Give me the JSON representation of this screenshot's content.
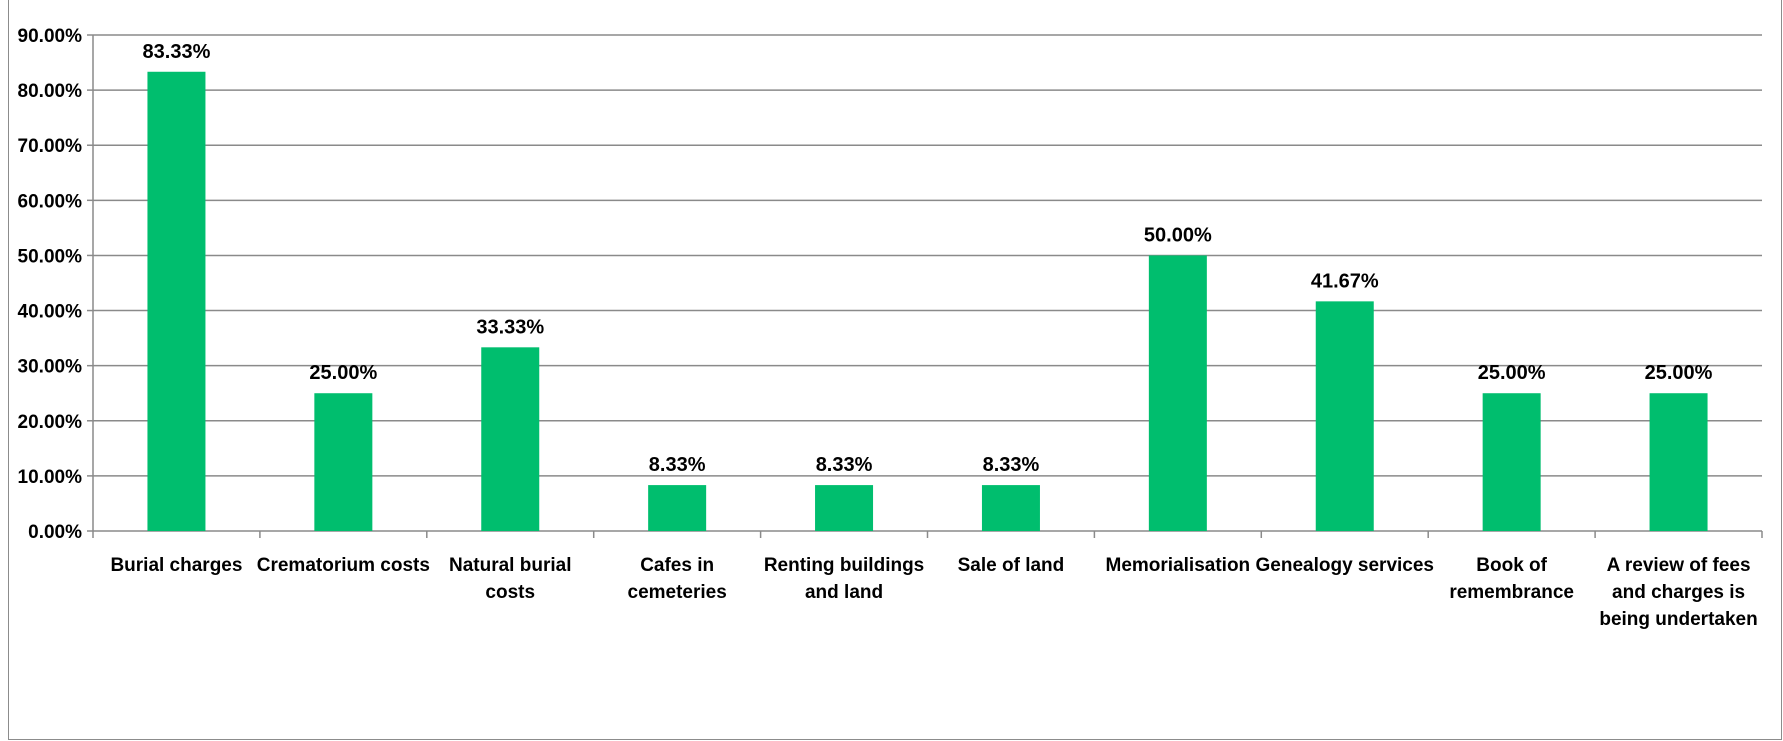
{
  "chart_data": {
    "type": "bar",
    "title": "",
    "xlabel": "",
    "ylabel": "",
    "categories": [
      "Burial charges",
      "Crematorium costs",
      "Natural burial costs",
      "Cafes in cemeteries",
      "Renting buildings and land",
      "Sale of land",
      "Memorialisation",
      "Genealogy services",
      "Book of remembrance",
      "A review of fees and charges is being undertaken"
    ],
    "category_label_lines": [
      [
        "Burial charges"
      ],
      [
        "Crematorium costs"
      ],
      [
        "Natural burial",
        "costs"
      ],
      [
        "Cafes in",
        "cemeteries"
      ],
      [
        "Renting buildings",
        "and land"
      ],
      [
        "Sale of land"
      ],
      [
        "Memorialisation"
      ],
      [
        "Genealogy services"
      ],
      [
        "Book of",
        "remembrance"
      ],
      [
        "A review of fees",
        "and charges is",
        "being undertaken"
      ]
    ],
    "values": [
      83.33,
      25.0,
      33.33,
      8.33,
      8.33,
      8.33,
      50.0,
      41.67,
      25.0,
      25.0
    ],
    "data_labels": [
      "83.33%",
      "25.00%",
      "33.33%",
      "8.33%",
      "8.33%",
      "8.33%",
      "50.00%",
      "41.67%",
      "25.00%",
      "25.00%"
    ],
    "y_ticks": [
      0,
      10,
      20,
      30,
      40,
      50,
      60,
      70,
      80,
      90
    ],
    "y_tick_labels": [
      "0.00%",
      "10.00%",
      "20.00%",
      "30.00%",
      "40.00%",
      "50.00%",
      "60.00%",
      "70.00%",
      "80.00%",
      "90.00%"
    ],
    "ylim": [
      0,
      90
    ],
    "grid": true,
    "legend": "none",
    "colors": {
      "bar": "#00be6e",
      "grid": "#8a8a8a",
      "axis": "#8a8a8a",
      "frame": "#8c8c8c"
    }
  }
}
